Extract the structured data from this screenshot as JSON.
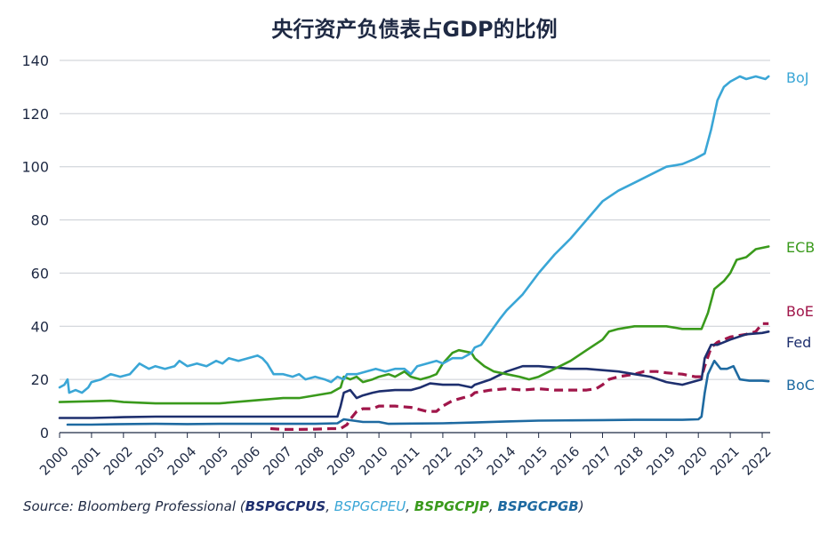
{
  "chart_data": {
    "type": "line",
    "title": "央行资产负债表占GDP的比例",
    "ylim": [
      0,
      140
    ],
    "yticks": [
      0,
      20,
      40,
      60,
      80,
      100,
      120,
      140
    ],
    "xlim": [
      2000,
      2022.25
    ],
    "xticks": [
      "2000",
      "2001",
      "2002",
      "2003",
      "2004",
      "2005",
      "2006",
      "2007",
      "2008",
      "2009",
      "2010",
      "2011",
      "2012",
      "2013",
      "2014",
      "2015",
      "2016",
      "2017",
      "2018",
      "2019",
      "2020",
      "2021",
      "2022"
    ],
    "grid": "horizontal",
    "legend": "end-of-line labels",
    "series": [
      {
        "name": "BoJ",
        "color": "#3aa6d6",
        "dash": false,
        "points": [
          [
            2000,
            17
          ],
          [
            2000.15,
            18
          ],
          [
            2000.25,
            20
          ],
          [
            2000.3,
            15
          ],
          [
            2000.5,
            16
          ],
          [
            2000.7,
            15
          ],
          [
            2000.9,
            17
          ],
          [
            2001,
            19
          ],
          [
            2001.3,
            20
          ],
          [
            2001.6,
            22
          ],
          [
            2001.9,
            21
          ],
          [
            2002.2,
            22
          ],
          [
            2002.5,
            26
          ],
          [
            2002.8,
            24
          ],
          [
            2003,
            25
          ],
          [
            2003.3,
            24
          ],
          [
            2003.6,
            25
          ],
          [
            2003.75,
            27
          ],
          [
            2004,
            25
          ],
          [
            2004.3,
            26
          ],
          [
            2004.6,
            25
          ],
          [
            2004.9,
            27
          ],
          [
            2005.1,
            26
          ],
          [
            2005.3,
            28
          ],
          [
            2005.6,
            27
          ],
          [
            2005.9,
            28
          ],
          [
            2006.2,
            29
          ],
          [
            2006.35,
            28
          ],
          [
            2006.5,
            26
          ],
          [
            2006.7,
            22
          ],
          [
            2007,
            22
          ],
          [
            2007.3,
            21
          ],
          [
            2007.5,
            22
          ],
          [
            2007.7,
            20
          ],
          [
            2008,
            21
          ],
          [
            2008.3,
            20
          ],
          [
            2008.5,
            19
          ],
          [
            2008.7,
            21
          ],
          [
            2008.9,
            20
          ],
          [
            2009,
            22
          ],
          [
            2009.3,
            22
          ],
          [
            2009.6,
            23
          ],
          [
            2009.9,
            24
          ],
          [
            2010.2,
            23
          ],
          [
            2010.5,
            24
          ],
          [
            2010.8,
            24
          ],
          [
            2011,
            22
          ],
          [
            2011.2,
            25
          ],
          [
            2011.5,
            26
          ],
          [
            2011.8,
            27
          ],
          [
            2012,
            26
          ],
          [
            2012.3,
            28
          ],
          [
            2012.6,
            28
          ],
          [
            2012.9,
            30
          ],
          [
            2013,
            32
          ],
          [
            2013.2,
            33
          ],
          [
            2013.5,
            38
          ],
          [
            2013.8,
            43
          ],
          [
            2014,
            46
          ],
          [
            2014.5,
            52
          ],
          [
            2015,
            60
          ],
          [
            2015.5,
            67
          ],
          [
            2016,
            73
          ],
          [
            2016.5,
            80
          ],
          [
            2017,
            87
          ],
          [
            2017.5,
            91
          ],
          [
            2018,
            94
          ],
          [
            2018.5,
            97
          ],
          [
            2019,
            100
          ],
          [
            2019.5,
            101
          ],
          [
            2019.9,
            103
          ],
          [
            2020.2,
            105
          ],
          [
            2020.4,
            114
          ],
          [
            2020.6,
            125
          ],
          [
            2020.8,
            130
          ],
          [
            2021,
            132
          ],
          [
            2021.3,
            134
          ],
          [
            2021.5,
            133
          ],
          [
            2021.8,
            134
          ],
          [
            2022.1,
            133
          ],
          [
            2022.2,
            134
          ]
        ]
      },
      {
        "name": "ECB",
        "color": "#3a9a1c",
        "dash": false,
        "points": [
          [
            2000,
            11.5
          ],
          [
            2001,
            11.8
          ],
          [
            2001.6,
            12.0
          ],
          [
            2002,
            11.5
          ],
          [
            2003,
            11
          ],
          [
            2004,
            11
          ],
          [
            2005,
            11
          ],
          [
            2006,
            12
          ],
          [
            2006.5,
            12.5
          ],
          [
            2007,
            13
          ],
          [
            2007.5,
            13
          ],
          [
            2008,
            14
          ],
          [
            2008.5,
            15
          ],
          [
            2008.8,
            17
          ],
          [
            2008.9,
            21
          ],
          [
            2009.1,
            20
          ],
          [
            2009.3,
            21
          ],
          [
            2009.5,
            19
          ],
          [
            2009.8,
            20
          ],
          [
            2010,
            21
          ],
          [
            2010.3,
            22
          ],
          [
            2010.5,
            21
          ],
          [
            2010.8,
            23
          ],
          [
            2011,
            21
          ],
          [
            2011.3,
            20
          ],
          [
            2011.6,
            21
          ],
          [
            2011.8,
            22
          ],
          [
            2012,
            26
          ],
          [
            2012.3,
            30
          ],
          [
            2012.5,
            31
          ],
          [
            2012.9,
            30
          ],
          [
            2013,
            28
          ],
          [
            2013.3,
            25
          ],
          [
            2013.6,
            23
          ],
          [
            2014,
            22
          ],
          [
            2014.4,
            21
          ],
          [
            2014.7,
            20
          ],
          [
            2015,
            21
          ],
          [
            2015.5,
            24
          ],
          [
            2016,
            27
          ],
          [
            2016.5,
            31
          ],
          [
            2017,
            35
          ],
          [
            2017.2,
            38
          ],
          [
            2017.5,
            39
          ],
          [
            2018,
            40
          ],
          [
            2018.5,
            40
          ],
          [
            2019,
            40
          ],
          [
            2019.5,
            39
          ],
          [
            2019.9,
            39
          ],
          [
            2020.1,
            39
          ],
          [
            2020.3,
            45
          ],
          [
            2020.5,
            54
          ],
          [
            2020.8,
            57
          ],
          [
            2021,
            60
          ],
          [
            2021.2,
            65
          ],
          [
            2021.5,
            66
          ],
          [
            2021.8,
            69
          ],
          [
            2022.2,
            70
          ]
        ]
      },
      {
        "name": "BoE",
        "color": "#a0164a",
        "dash": true,
        "points": [
          [
            2006.6,
            1.5
          ],
          [
            2007,
            1.2
          ],
          [
            2007.5,
            1.2
          ],
          [
            2008,
            1.3
          ],
          [
            2008.5,
            1.5
          ],
          [
            2008.8,
            1.5
          ],
          [
            2009,
            3
          ],
          [
            2009.1,
            5
          ],
          [
            2009.3,
            8
          ],
          [
            2009.5,
            9
          ],
          [
            2009.8,
            9
          ],
          [
            2010,
            10
          ],
          [
            2010.5,
            10
          ],
          [
            2011,
            9.5
          ],
          [
            2011.5,
            8
          ],
          [
            2011.8,
            8
          ],
          [
            2012,
            10
          ],
          [
            2012.3,
            12
          ],
          [
            2012.6,
            13
          ],
          [
            2012.9,
            14
          ],
          [
            2013,
            15
          ],
          [
            2013.5,
            16
          ],
          [
            2014,
            16.5
          ],
          [
            2014.5,
            16
          ],
          [
            2015,
            16.5
          ],
          [
            2015.5,
            16
          ],
          [
            2016,
            16
          ],
          [
            2016.5,
            16
          ],
          [
            2016.8,
            16.5
          ],
          [
            2017,
            18
          ],
          [
            2017.2,
            20
          ],
          [
            2017.5,
            21
          ],
          [
            2018,
            22
          ],
          [
            2018.3,
            23
          ],
          [
            2018.7,
            23
          ],
          [
            2019,
            22.5
          ],
          [
            2019.5,
            22
          ],
          [
            2019.9,
            21
          ],
          [
            2020.1,
            21
          ],
          [
            2020.2,
            25
          ],
          [
            2020.4,
            32
          ],
          [
            2020.6,
            34
          ],
          [
            2021,
            36
          ],
          [
            2021.5,
            37
          ],
          [
            2021.8,
            38
          ],
          [
            2022,
            41
          ],
          [
            2022.2,
            41
          ]
        ]
      },
      {
        "name": "Fed",
        "color": "#1e2f6e",
        "dash": false,
        "points": [
          [
            2000,
            5.5
          ],
          [
            2001,
            5.5
          ],
          [
            2002,
            5.8
          ],
          [
            2003,
            6
          ],
          [
            2004,
            6
          ],
          [
            2005,
            6
          ],
          [
            2006,
            6
          ],
          [
            2007,
            6
          ],
          [
            2008,
            6
          ],
          [
            2008.7,
            6
          ],
          [
            2008.8,
            10
          ],
          [
            2008.9,
            15
          ],
          [
            2009.1,
            16
          ],
          [
            2009.3,
            13
          ],
          [
            2009.5,
            14
          ],
          [
            2009.8,
            15
          ],
          [
            2010,
            15.5
          ],
          [
            2010.5,
            16
          ],
          [
            2011,
            16
          ],
          [
            2011.3,
            17
          ],
          [
            2011.6,
            18.5
          ],
          [
            2012,
            18
          ],
          [
            2012.5,
            18
          ],
          [
            2012.9,
            17
          ],
          [
            2013,
            18
          ],
          [
            2013.5,
            20
          ],
          [
            2014,
            23
          ],
          [
            2014.5,
            25
          ],
          [
            2015,
            25
          ],
          [
            2015.5,
            24.5
          ],
          [
            2016,
            24
          ],
          [
            2016.5,
            24
          ],
          [
            2017,
            23.5
          ],
          [
            2017.5,
            23
          ],
          [
            2018,
            22
          ],
          [
            2018.5,
            21
          ],
          [
            2019,
            19
          ],
          [
            2019.5,
            18
          ],
          [
            2019.8,
            19
          ],
          [
            2020.1,
            20
          ],
          [
            2020.2,
            28
          ],
          [
            2020.4,
            33
          ],
          [
            2020.6,
            33
          ],
          [
            2021,
            35
          ],
          [
            2021.5,
            37
          ],
          [
            2022,
            37.5
          ],
          [
            2022.2,
            38
          ]
        ]
      },
      {
        "name": "BoC",
        "color": "#1e6aa1",
        "dash": false,
        "points": [
          [
            2000.25,
            3
          ],
          [
            2001,
            3
          ],
          [
            2002,
            3.2
          ],
          [
            2003,
            3.3
          ],
          [
            2004,
            3.2
          ],
          [
            2005,
            3.3
          ],
          [
            2006,
            3.3
          ],
          [
            2007,
            3.3
          ],
          [
            2008,
            3.3
          ],
          [
            2008.7,
            3.5
          ],
          [
            2008.9,
            5
          ],
          [
            2009.2,
            4.5
          ],
          [
            2009.5,
            4
          ],
          [
            2010,
            4
          ],
          [
            2010.3,
            3.3
          ],
          [
            2011,
            3.4
          ],
          [
            2012,
            3.5
          ],
          [
            2013,
            3.8
          ],
          [
            2014,
            4.2
          ],
          [
            2015,
            4.5
          ],
          [
            2016,
            4.6
          ],
          [
            2017,
            4.7
          ],
          [
            2018,
            4.8
          ],
          [
            2019,
            4.8
          ],
          [
            2019.5,
            4.8
          ],
          [
            2020,
            5
          ],
          [
            2020.1,
            6
          ],
          [
            2020.2,
            15
          ],
          [
            2020.3,
            22
          ],
          [
            2020.5,
            27
          ],
          [
            2020.7,
            24
          ],
          [
            2020.9,
            24
          ],
          [
            2021.1,
            25
          ],
          [
            2021.3,
            20
          ],
          [
            2021.6,
            19.5
          ],
          [
            2022,
            19.5
          ],
          [
            2022.2,
            19.3
          ]
        ]
      }
    ]
  },
  "source_text": {
    "prefix": "Source: Bloomberg Professional (",
    "codes": [
      {
        "code": "BSPGCPUS",
        "color": "#1e2f6e",
        "bold": true
      },
      {
        "code": "BSPGCPEU",
        "color": "#3aa6d6",
        "bold": false
      },
      {
        "code": "BSPGCPJP",
        "color": "#3a9a1c",
        "bold": true
      },
      {
        "code": "BSPGCPGB",
        "color": "#1e6aa1",
        "bold": true
      }
    ],
    "separator": ", ",
    "suffix": ")"
  }
}
